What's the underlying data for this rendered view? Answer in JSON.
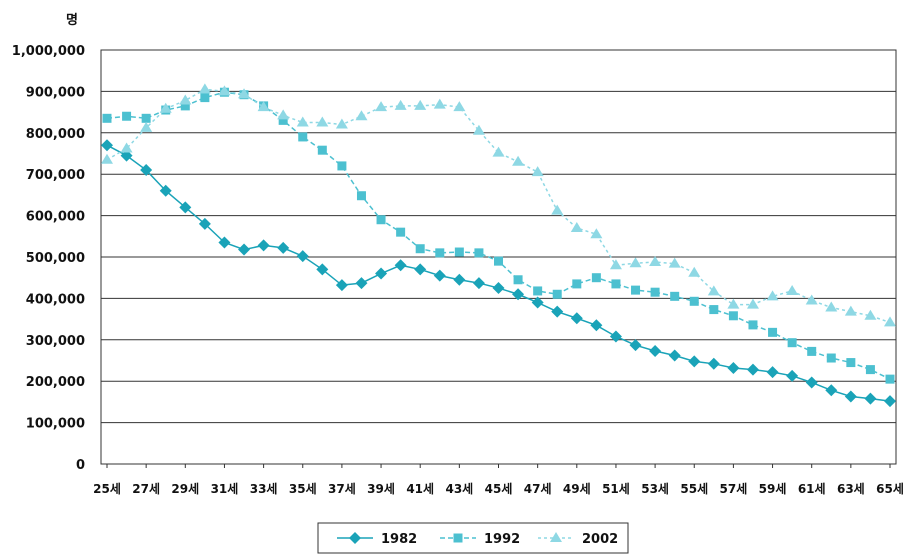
{
  "chart_data": {
    "type": "line",
    "unit_label": "명",
    "ylim": [
      0,
      1000000
    ],
    "y_ticks": [
      "0",
      "100,000",
      "200,000",
      "300,000",
      "400,000",
      "500,000",
      "600,000",
      "700,000",
      "800,000",
      "900,000",
      "1,000,000"
    ],
    "x_tick_labels": [
      "25세",
      "27세",
      "29세",
      "31세",
      "33세",
      "35세",
      "37세",
      "39세",
      "41세",
      "43세",
      "45세",
      "47세",
      "49세",
      "51세",
      "53세",
      "55세",
      "57세",
      "59세",
      "61세",
      "63세",
      "65세"
    ],
    "x": [
      25,
      26,
      27,
      28,
      29,
      30,
      31,
      32,
      33,
      34,
      35,
      36,
      37,
      38,
      39,
      40,
      41,
      42,
      43,
      44,
      45,
      46,
      47,
      48,
      49,
      50,
      51,
      52,
      53,
      54,
      55,
      56,
      57,
      58,
      59,
      60,
      61,
      62,
      63,
      64,
      65
    ],
    "grid": true,
    "legend_position": "bottom",
    "series": [
      {
        "name": "1982",
        "color": "#1aa3b8",
        "marker": "diamond",
        "dash": "",
        "values": [
          770000,
          745000,
          710000,
          660000,
          620000,
          580000,
          535000,
          518000,
          528000,
          522000,
          502000,
          470000,
          432000,
          437000,
          460000,
          480000,
          470000,
          455000,
          445000,
          437000,
          425000,
          410000,
          390000,
          368000,
          352000,
          335000,
          308000,
          287000,
          273000,
          262000,
          248000,
          242000,
          232000,
          228000,
          222000,
          213000,
          197000,
          178000,
          163000,
          158000,
          152000
        ]
      },
      {
        "name": "1992",
        "color": "#4cc0d0",
        "marker": "square",
        "dash": "5,3",
        "values": [
          835000,
          840000,
          835000,
          855000,
          865000,
          885000,
          898000,
          892000,
          865000,
          830000,
          790000,
          758000,
          720000,
          648000,
          590000,
          560000,
          520000,
          510000,
          512000,
          510000,
          490000,
          445000,
          418000,
          410000,
          435000,
          450000,
          435000,
          420000,
          415000,
          405000,
          393000,
          373000,
          358000,
          336000,
          318000,
          293000,
          272000,
          256000,
          245000,
          228000,
          205000
        ]
      },
      {
        "name": "2002",
        "color": "#8ed8e4",
        "marker": "triangle",
        "dash": "3,3",
        "values": [
          735000,
          762000,
          812000,
          858000,
          878000,
          905000,
          900000,
          893000,
          862000,
          842000,
          825000,
          825000,
          820000,
          840000,
          862000,
          865000,
          865000,
          868000,
          862000,
          805000,
          752000,
          730000,
          705000,
          612000,
          570000,
          555000,
          480000,
          485000,
          488000,
          484000,
          462000,
          417000,
          385000,
          385000,
          405000,
          418000,
          395000,
          378000,
          368000,
          358000,
          342000
        ]
      }
    ]
  }
}
